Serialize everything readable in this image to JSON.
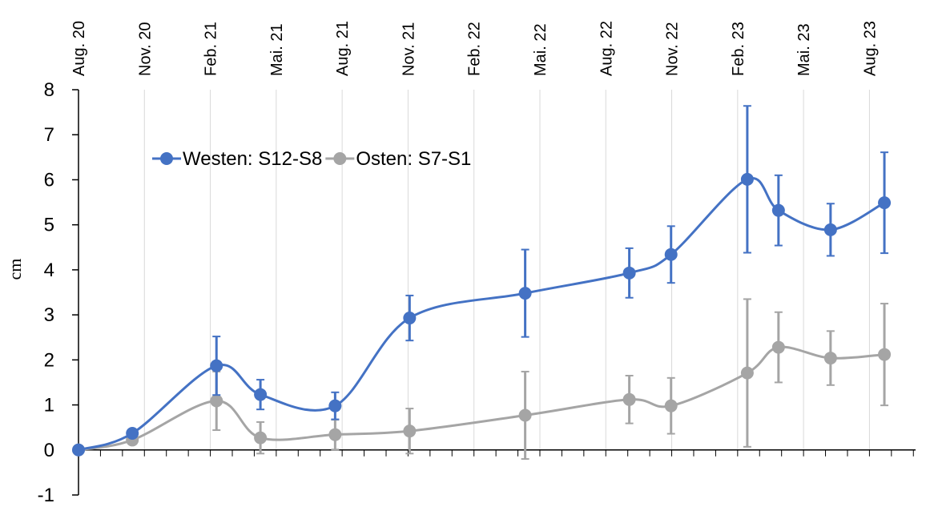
{
  "chart_data": {
    "type": "line",
    "y_label": "cm",
    "xlim": [
      0,
      38.1
    ],
    "xticks": [
      {
        "value": 0,
        "label": "Aug. 20"
      },
      {
        "value": 3,
        "label": "Nov. 20"
      },
      {
        "value": 6,
        "label": "Feb. 21"
      },
      {
        "value": 9,
        "label": "Mai. 21"
      },
      {
        "value": 12,
        "label": "Aug. 21"
      },
      {
        "value": 15,
        "label": "Nov. 21"
      },
      {
        "value": 18,
        "label": "Feb. 22"
      },
      {
        "value": 21,
        "label": "Mai. 22"
      },
      {
        "value": 24,
        "label": "Aug. 22"
      },
      {
        "value": 27,
        "label": "Nov. 22"
      },
      {
        "value": 30,
        "label": "Feb. 23"
      },
      {
        "value": 33,
        "label": "Mai. 23"
      },
      {
        "value": 36,
        "label": "Aug. 23"
      }
    ],
    "ylim": [
      -1,
      8
    ],
    "yticks": [
      -1,
      0,
      1,
      2,
      3,
      4,
      5,
      6,
      7,
      8
    ],
    "grid": true,
    "x": [
      0,
      2.45,
      6.28,
      8.28,
      11.68,
      15.07,
      20.33,
      25.07,
      26.97,
      30.44,
      31.86,
      34.23,
      36.68
    ],
    "series": [
      {
        "name": "Westen: S12-S8",
        "color": "#4472c4",
        "values": [
          0,
          0.37,
          1.87,
          1.23,
          0.98,
          2.93,
          3.48,
          3.93,
          4.34,
          6.01,
          5.32,
          4.89,
          5.49
        ],
        "errors": [
          0,
          0.05,
          0.65,
          0.33,
          0.3,
          0.5,
          0.97,
          0.55,
          0.63,
          1.63,
          0.78,
          0.58,
          1.12
        ]
      },
      {
        "name": "Osten: S7-S1",
        "color": "#a5a5a5",
        "values": [
          0,
          0.22,
          1.09,
          0.27,
          0.34,
          0.42,
          0.77,
          1.12,
          0.98,
          1.71,
          2.28,
          2.04,
          2.12
        ],
        "errors": [
          0,
          0.05,
          0.65,
          0.35,
          0.33,
          0.5,
          0.97,
          0.53,
          0.62,
          1.64,
          0.78,
          0.6,
          1.13
        ]
      }
    ]
  }
}
